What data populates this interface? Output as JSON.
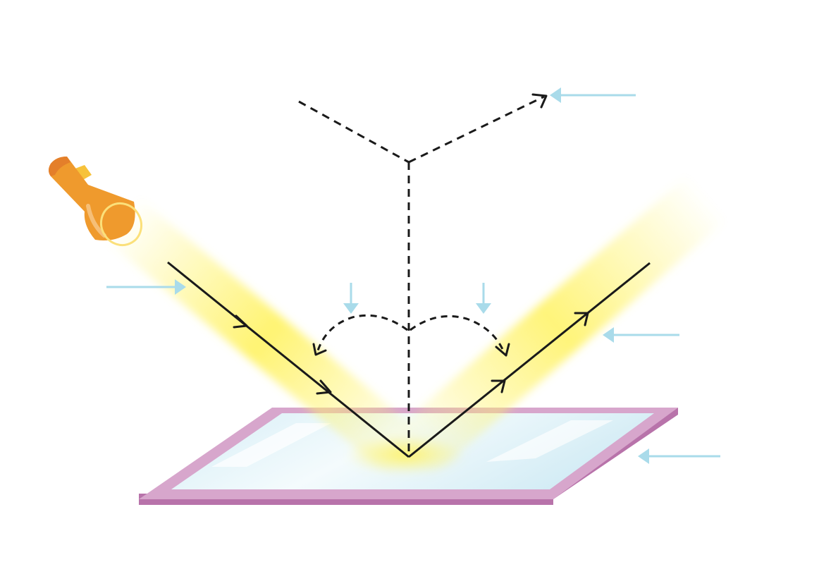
{
  "diagram": {
    "type": "reflection-of-light",
    "labels": [],
    "colors": {
      "background": "#ffffff",
      "ray": "#1a1a1a",
      "normal": "#1a1a1a",
      "pointer_arrow": "#a9dbea",
      "light_beam": "#fff36b",
      "torch_body": "#ef9a2d",
      "torch_dark": "#e47f2a",
      "torch_switch": "#f7c23a",
      "torch_lens": "#fbe07a",
      "mirror_frame": "#d7a6cc",
      "mirror_frame_dark": "#b873aa",
      "mirror_glass": "#e4f4f9"
    },
    "icons": [
      "torch-icon",
      "mirror-icon"
    ]
  }
}
